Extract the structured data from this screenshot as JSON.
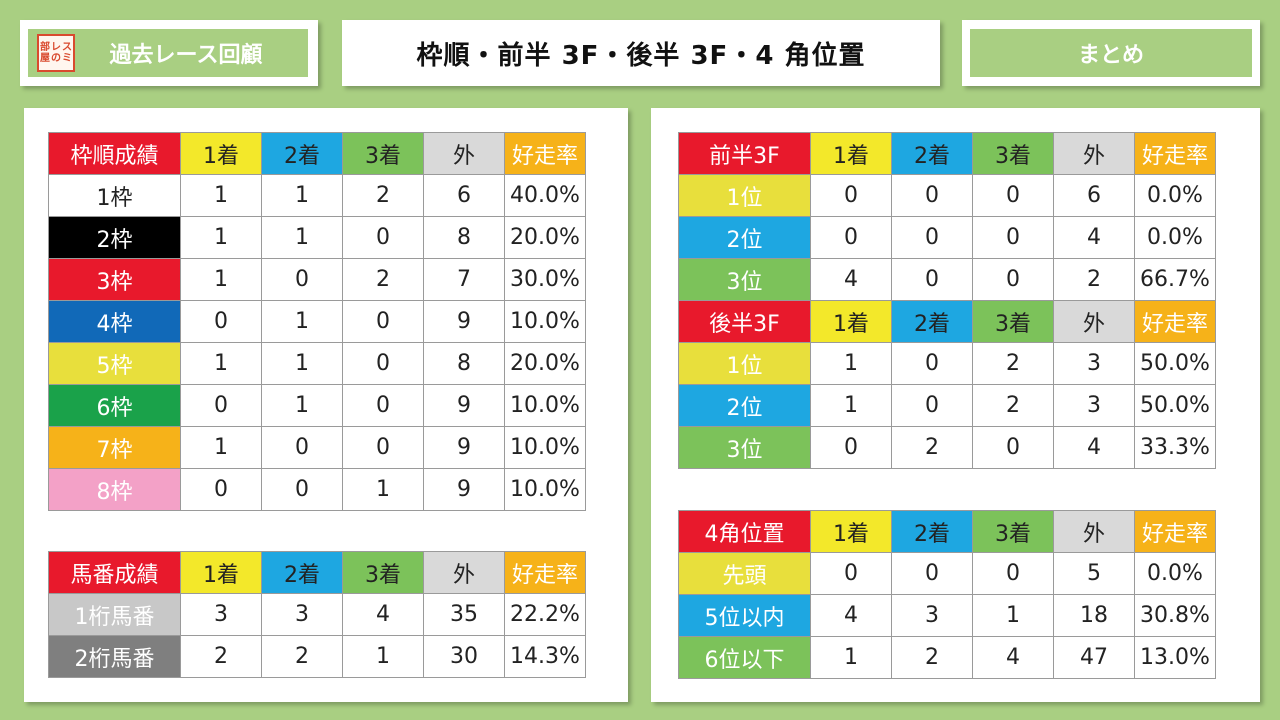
{
  "header": {
    "logo_text": "スミレの部屋",
    "left_label": "過去レース回顧",
    "title": "枠順・前半 3F・後半 3F・4 角位置",
    "right_label": "まとめ"
  },
  "colors": {
    "background": "#a9cf82",
    "red": "#e8192c",
    "yellow": "#f3e82a",
    "blue": "#1ea7e1",
    "green": "#7cc25a",
    "gray": "#d9d9d9",
    "orange": "#f6b219"
  },
  "waku_table": {
    "headers": [
      "枠順成績",
      "1着",
      "2着",
      "3着",
      "外",
      "好走率"
    ],
    "rows": [
      {
        "label": "1枠",
        "color": "#ffffff",
        "text_color": "#222222",
        "cells": [
          "1",
          "1",
          "2",
          "6",
          "40.0%"
        ]
      },
      {
        "label": "2枠",
        "color": "#000000",
        "text_color": "#ffffff",
        "cells": [
          "1",
          "1",
          "0",
          "8",
          "20.0%"
        ]
      },
      {
        "label": "3枠",
        "color": "#e8192c",
        "text_color": "#ffffff",
        "cells": [
          "1",
          "0",
          "2",
          "7",
          "30.0%"
        ]
      },
      {
        "label": "4枠",
        "color": "#1169b8",
        "text_color": "#ffffff",
        "cells": [
          "0",
          "1",
          "0",
          "9",
          "10.0%"
        ]
      },
      {
        "label": "5枠",
        "color": "#e8df3c",
        "text_color": "#ffffff",
        "cells": [
          "1",
          "1",
          "0",
          "8",
          "20.0%"
        ]
      },
      {
        "label": "6枠",
        "color": "#1aa24a",
        "text_color": "#ffffff",
        "cells": [
          "0",
          "1",
          "0",
          "9",
          "10.0%"
        ]
      },
      {
        "label": "7枠",
        "color": "#f6b219",
        "text_color": "#ffffff",
        "cells": [
          "1",
          "0",
          "0",
          "9",
          "10.0%"
        ]
      },
      {
        "label": "8枠",
        "color": "#f3a1c7",
        "text_color": "#ffffff",
        "cells": [
          "0",
          "0",
          "1",
          "9",
          "10.0%"
        ]
      }
    ]
  },
  "umaban_table": {
    "headers": [
      "馬番成績",
      "1着",
      "2着",
      "3着",
      "外",
      "好走率"
    ],
    "rows": [
      {
        "label": "1桁馬番",
        "color": "#c8c8c8",
        "text_color": "#ffffff",
        "cells": [
          "3",
          "3",
          "4",
          "35",
          "22.2%"
        ]
      },
      {
        "label": "2桁馬番",
        "color": "#7f7f7f",
        "text_color": "#ffffff",
        "cells": [
          "2",
          "2",
          "1",
          "30",
          "14.3%"
        ]
      }
    ]
  },
  "zenhan_table": {
    "headers": [
      "前半3F",
      "1着",
      "2着",
      "3着",
      "外",
      "好走率"
    ],
    "rows": [
      {
        "label": "1位",
        "color": "#e8df3c",
        "text_color": "#ffffff",
        "cells": [
          "0",
          "0",
          "0",
          "6",
          "0.0%"
        ]
      },
      {
        "label": "2位",
        "color": "#1ea7e1",
        "text_color": "#ffffff",
        "cells": [
          "0",
          "0",
          "0",
          "4",
          "0.0%"
        ]
      },
      {
        "label": "3位",
        "color": "#7cc25a",
        "text_color": "#ffffff",
        "cells": [
          "4",
          "0",
          "0",
          "2",
          "66.7%"
        ]
      }
    ]
  },
  "kouhan_table": {
    "headers": [
      "後半3F",
      "1着",
      "2着",
      "3着",
      "外",
      "好走率"
    ],
    "rows": [
      {
        "label": "1位",
        "color": "#e8df3c",
        "text_color": "#ffffff",
        "cells": [
          "1",
          "0",
          "2",
          "3",
          "50.0%"
        ]
      },
      {
        "label": "2位",
        "color": "#1ea7e1",
        "text_color": "#ffffff",
        "cells": [
          "1",
          "0",
          "2",
          "3",
          "50.0%"
        ]
      },
      {
        "label": "3位",
        "color": "#7cc25a",
        "text_color": "#ffffff",
        "cells": [
          "0",
          "2",
          "0",
          "4",
          "33.3%"
        ]
      }
    ]
  },
  "corner_table": {
    "headers": [
      "4角位置",
      "1着",
      "2着",
      "3着",
      "外",
      "好走率"
    ],
    "rows": [
      {
        "label": "先頭",
        "color": "#e8df3c",
        "text_color": "#ffffff",
        "cells": [
          "0",
          "0",
          "0",
          "5",
          "0.0%"
        ]
      },
      {
        "label": "5位以内",
        "color": "#1ea7e1",
        "text_color": "#ffffff",
        "cells": [
          "4",
          "3",
          "1",
          "18",
          "30.8%"
        ]
      },
      {
        "label": "6位以下",
        "color": "#7cc25a",
        "text_color": "#ffffff",
        "cells": [
          "1",
          "2",
          "4",
          "47",
          "13.0%"
        ]
      }
    ]
  }
}
